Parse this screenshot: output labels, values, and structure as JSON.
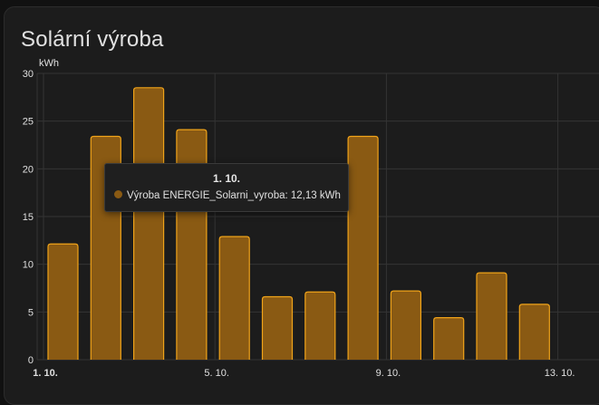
{
  "card": {
    "title": "Solární výroba"
  },
  "colors": {
    "bar_fill": "#8a5a13",
    "bar_stroke": "#f0a319",
    "grid": "#343434",
    "tick_text": "#e0e0e0"
  },
  "chart_data": {
    "type": "bar",
    "ylabel": "kWh",
    "ylim": [
      0,
      30
    ],
    "yticks": [
      0,
      5,
      10,
      15,
      20,
      25,
      30
    ],
    "xlim": [
      "2024-10-01",
      "2024-10-14"
    ],
    "xticks": [
      {
        "date": "2024-10-01",
        "label": "1. 10.",
        "bold": true
      },
      {
        "date": "2024-10-05",
        "label": "5. 10.",
        "bold": false
      },
      {
        "date": "2024-10-09",
        "label": "9. 10.",
        "bold": false
      },
      {
        "date": "2024-10-13",
        "label": "13. 10.",
        "bold": false
      }
    ],
    "grid": true,
    "series": [
      {
        "name": "Výroba ENERGIE_Solarni_vyroba",
        "points": [
          {
            "x": "2024-10-01",
            "y": 12.13
          },
          {
            "x": "2024-10-02",
            "y": 23.4
          },
          {
            "x": "2024-10-03",
            "y": 28.5
          },
          {
            "x": "2024-10-04",
            "y": 24.1
          },
          {
            "x": "2024-10-05",
            "y": 12.9
          },
          {
            "x": "2024-10-06",
            "y": 6.6
          },
          {
            "x": "2024-10-07",
            "y": 7.1
          },
          {
            "x": "2024-10-08",
            "y": 23.4
          },
          {
            "x": "2024-10-09",
            "y": 7.2
          },
          {
            "x": "2024-10-10",
            "y": 4.4
          },
          {
            "x": "2024-10-11",
            "y": 9.1
          },
          {
            "x": "2024-10-12",
            "y": 5.8
          }
        ]
      }
    ]
  },
  "tooltip": {
    "date": "1. 10.",
    "text": "Výroba ENERGIE_Solarni_vyroba: 12,13 kWh"
  }
}
